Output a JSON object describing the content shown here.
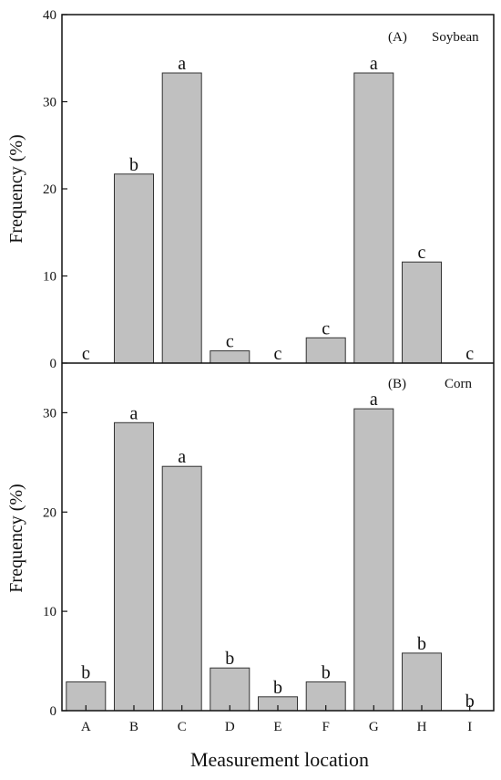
{
  "chart_data": [
    {
      "type": "bar",
      "panel_label": "(A)",
      "title": "Soybean",
      "ylabel": "Frequency (%)",
      "ylim": [
        0,
        40
      ],
      "yticks": [
        0,
        10,
        20,
        30,
        40
      ],
      "categories": [
        "A",
        "B",
        "C",
        "D",
        "E",
        "F",
        "G",
        "H",
        "I"
      ],
      "values": [
        0,
        21.7,
        33.3,
        1.4,
        0,
        2.9,
        33.3,
        11.6,
        0
      ],
      "significance": [
        "c",
        "b",
        "a",
        "c",
        "c",
        "c",
        "a",
        "c",
        "c"
      ],
      "bar_color": "#c0c0c0"
    },
    {
      "type": "bar",
      "panel_label": "(B)",
      "title": "Corn",
      "ylabel": "Frequency (%)",
      "xlabel": "Measurement location",
      "ylim": [
        0,
        35
      ],
      "yticks": [
        0,
        10,
        20,
        30
      ],
      "categories": [
        "A",
        "B",
        "C",
        "D",
        "E",
        "F",
        "G",
        "H",
        "I"
      ],
      "values": [
        2.9,
        29.0,
        24.6,
        4.3,
        1.4,
        2.9,
        30.4,
        5.8,
        0
      ],
      "significance": [
        "b",
        "a",
        "a",
        "b",
        "b",
        "b",
        "a",
        "b",
        "b"
      ],
      "bar_color": "#c0c0c0"
    }
  ]
}
